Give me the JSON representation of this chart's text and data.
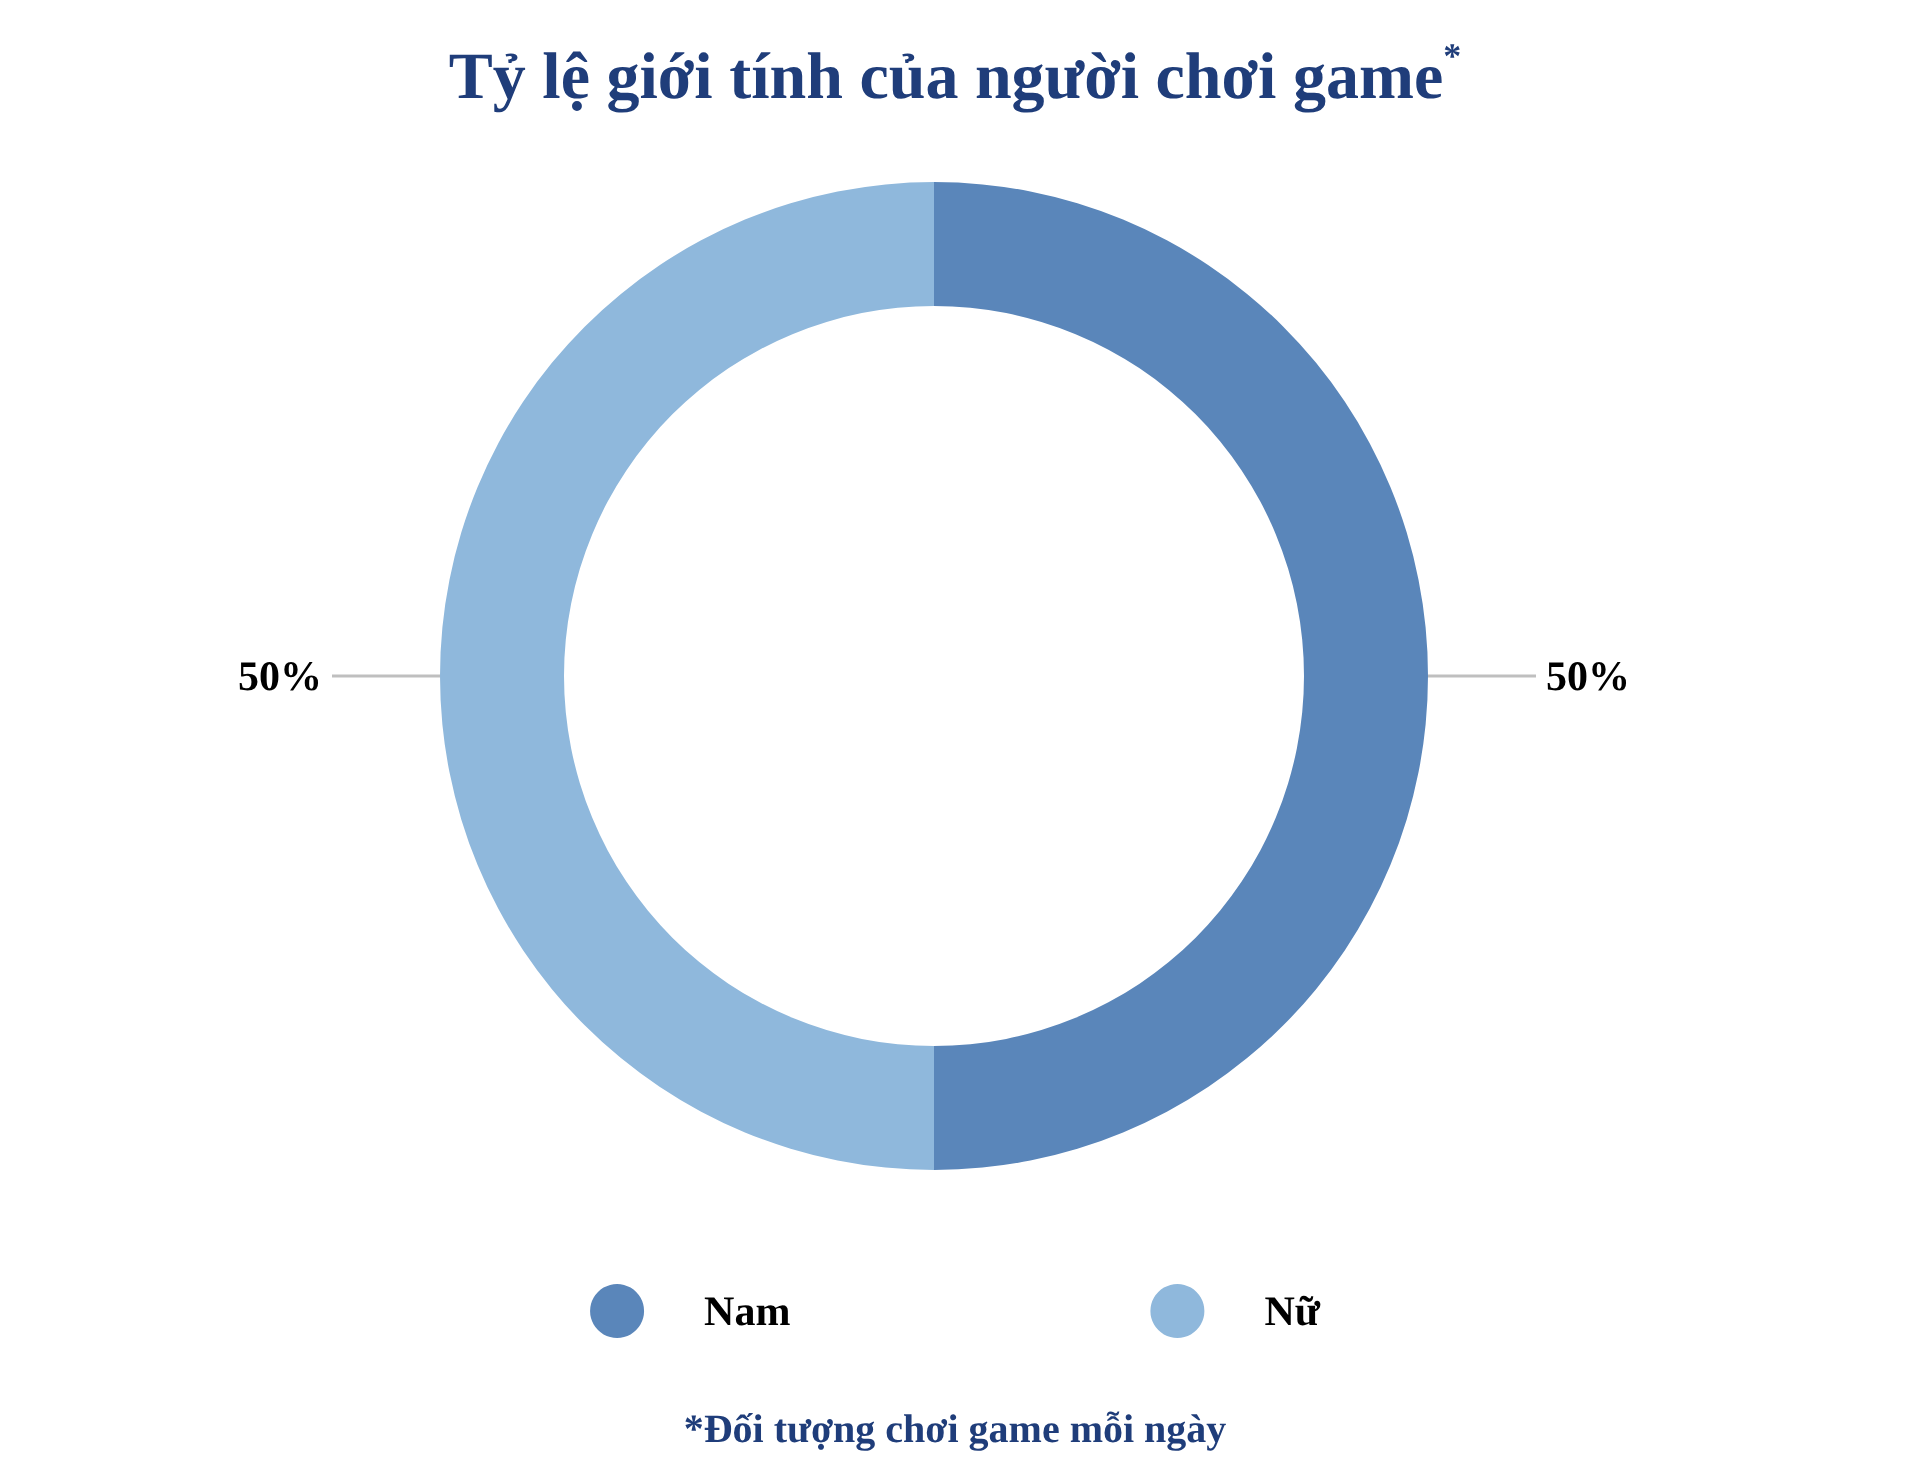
{
  "chart_data": {
    "type": "donut",
    "title": "Tỷ lệ giới tính của người chơi game$^{*}$",
    "categories": [
      "Nam",
      "Nữ"
    ],
    "values": [
      50,
      50
    ],
    "colors": [
      "#5a86ba",
      "#8fb8dc"
    ],
    "value_labels": [
      "50%",
      "50%"
    ],
    "legend": "bottom",
    "annotations": [
      "*Đối tượng chơi game mỗi ngày"
    ]
  }
}
